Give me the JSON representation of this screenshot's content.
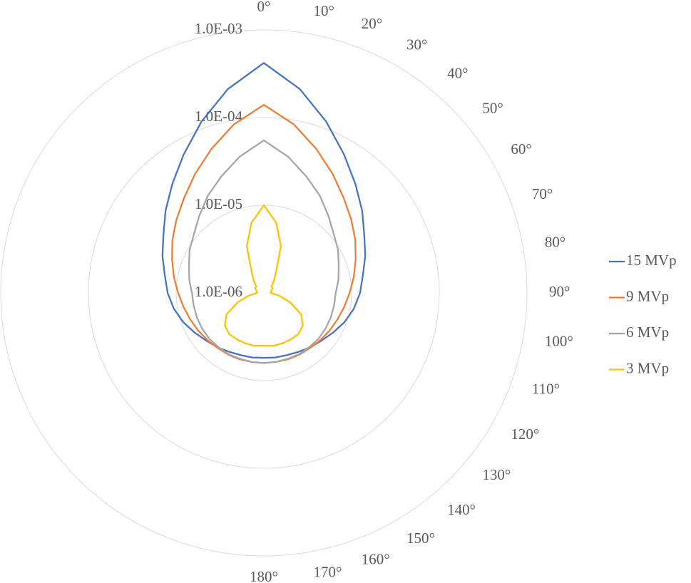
{
  "chart_data": {
    "type": "radar",
    "categories": [
      "0°",
      "10°",
      "20°",
      "30°",
      "40°",
      "50°",
      "60°",
      "70°",
      "80°",
      "90°",
      "100°",
      "110°",
      "120°",
      "130°",
      "140°",
      "150°",
      "160°",
      "170°",
      "180°",
      null,
      null,
      null,
      null,
      null,
      null,
      null,
      null,
      null,
      null,
      null,
      null,
      null,
      null,
      null,
      null,
      null
    ],
    "log_scale": true,
    "ylim": [
      1e-06,
      0.001
    ],
    "yticks": [
      {
        "value": 1e-06,
        "label": "1.0E-06"
      },
      {
        "value": 1e-05,
        "label": "1.0E-05"
      },
      {
        "value": 0.0001,
        "label": "1.0E-04"
      },
      {
        "value": 0.001,
        "label": "1.0E-03"
      }
    ],
    "grid": true,
    "legend": "right",
    "series": [
      {
        "name": "15 MVp",
        "color": "#4472c4",
        "values": [
          0.00042,
          0.00023,
          0.00012,
          6.7e-05,
          4.2e-05,
          2.9e-05,
          2.1e-05,
          1.7e-05,
          1.4e-05,
          1.25e-05,
          1.1e-05,
          9.5e-06,
          8.1e-06,
          7.1e-06,
          6.5e-06,
          6e-06,
          5.7e-06,
          5.6e-06,
          5.5e-06,
          5.6e-06,
          5.7e-06,
          6e-06,
          6.5e-06,
          7.1e-06,
          8.1e-06,
          9.5e-06,
          1.1e-05,
          1.25e-05,
          1.4e-05,
          1.7e-05,
          2.1e-05,
          2.9e-05,
          4.2e-05,
          6.7e-05,
          0.00012,
          0.00023
        ]
      },
      {
        "name": "9 MVp",
        "color": "#ed7d31",
        "values": [
          0.00014,
          9e-05,
          5.6e-05,
          3.7e-05,
          2.6e-05,
          2e-05,
          1.6e-05,
          1.3e-05,
          1.1e-05,
          9.5e-06,
          8.5e-06,
          7.8e-06,
          7.3e-06,
          6.9e-06,
          6.6e-06,
          6.5e-06,
          6.4e-06,
          6.3e-06,
          6.3e-06,
          6.3e-06,
          6.4e-06,
          6.5e-06,
          6.6e-06,
          6.9e-06,
          7.3e-06,
          7.8e-06,
          8.5e-06,
          9.5e-06,
          1.1e-05,
          1.3e-05,
          1.6e-05,
          2e-05,
          2.6e-05,
          3.7e-05,
          5.6e-05,
          9e-05
        ]
      },
      {
        "name": "6 MVp",
        "color": "#a5a5a5",
        "values": [
          5.5e-05,
          3.8e-05,
          2.6e-05,
          1.9e-05,
          1.4e-05,
          1.1e-05,
          9.5e-06,
          8.1e-06,
          7.3e-06,
          6.6e-06,
          6.5e-06,
          6.5e-06,
          6.5e-06,
          6.5e-06,
          6.4e-06,
          6.4e-06,
          6.3e-06,
          6.3e-06,
          6.3e-06,
          6.3e-06,
          6.3e-06,
          6.4e-06,
          6.4e-06,
          6.5e-06,
          6.5e-06,
          6.5e-06,
          6.5e-06,
          6.6e-06,
          7.3e-06,
          8.1e-06,
          9.5e-06,
          1.1e-05,
          1.4e-05,
          1.9e-05,
          2.6e-05,
          3.8e-05
        ]
      },
      {
        "name": "3 MVp",
        "color": "#ffc000",
        "values": [
          1e-05,
          6.5e-06,
          3.7e-06,
          1.9e-06,
          1.5e-06,
          1.3e-06,
          1.3e-06,
          1.25e-06,
          1.2e-06,
          1.2e-06,
          1.5e-06,
          2.1e-06,
          3.1e-06,
          3.8e-06,
          4.1e-06,
          4.1e-06,
          4.1e-06,
          4.1e-06,
          4e-06,
          4.1e-06,
          4.1e-06,
          4.1e-06,
          4.1e-06,
          3.8e-06,
          3.1e-06,
          2.1e-06,
          1.5e-06,
          1.2e-06,
          1.2e-06,
          1.25e-06,
          1.3e-06,
          1.3e-06,
          1.5e-06,
          1.9e-06,
          3.7e-06,
          6.5e-06
        ]
      }
    ]
  }
}
